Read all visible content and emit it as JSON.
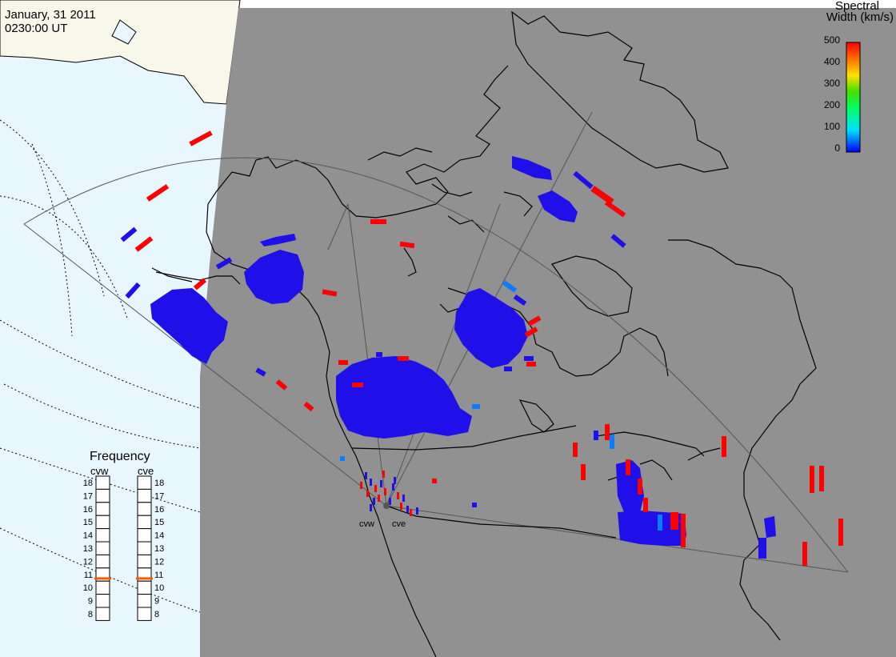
{
  "header": {
    "date": "January, 31 2011",
    "time": "0230:00 UT"
  },
  "colorbar": {
    "title_line1": "Spectral",
    "title_line2": "Width (km/s)",
    "ticks": [
      "500",
      "400",
      "300",
      "200",
      "100",
      "0"
    ]
  },
  "frequency_panel": {
    "title": "Frequency",
    "radars": [
      {
        "label": "cvw",
        "value": 10.7
      },
      {
        "label": "cve",
        "value": 10.7
      }
    ],
    "ticks": [
      "18",
      "17",
      "16",
      "15",
      "14",
      "13",
      "12",
      "11",
      "10",
      "9",
      "8"
    ]
  },
  "radar_sites": [
    "cvw",
    "cve"
  ],
  "colors": {
    "background": "#ffffff",
    "night": "#919191",
    "ocean_day": "#e8f6fe",
    "land_day": "#f7f7ea",
    "scatter_low": "#1f10ea",
    "scatter_mid": "#0a7cff",
    "scatter_high": "#ff0000",
    "freq_marker": "#ff5a00"
  }
}
